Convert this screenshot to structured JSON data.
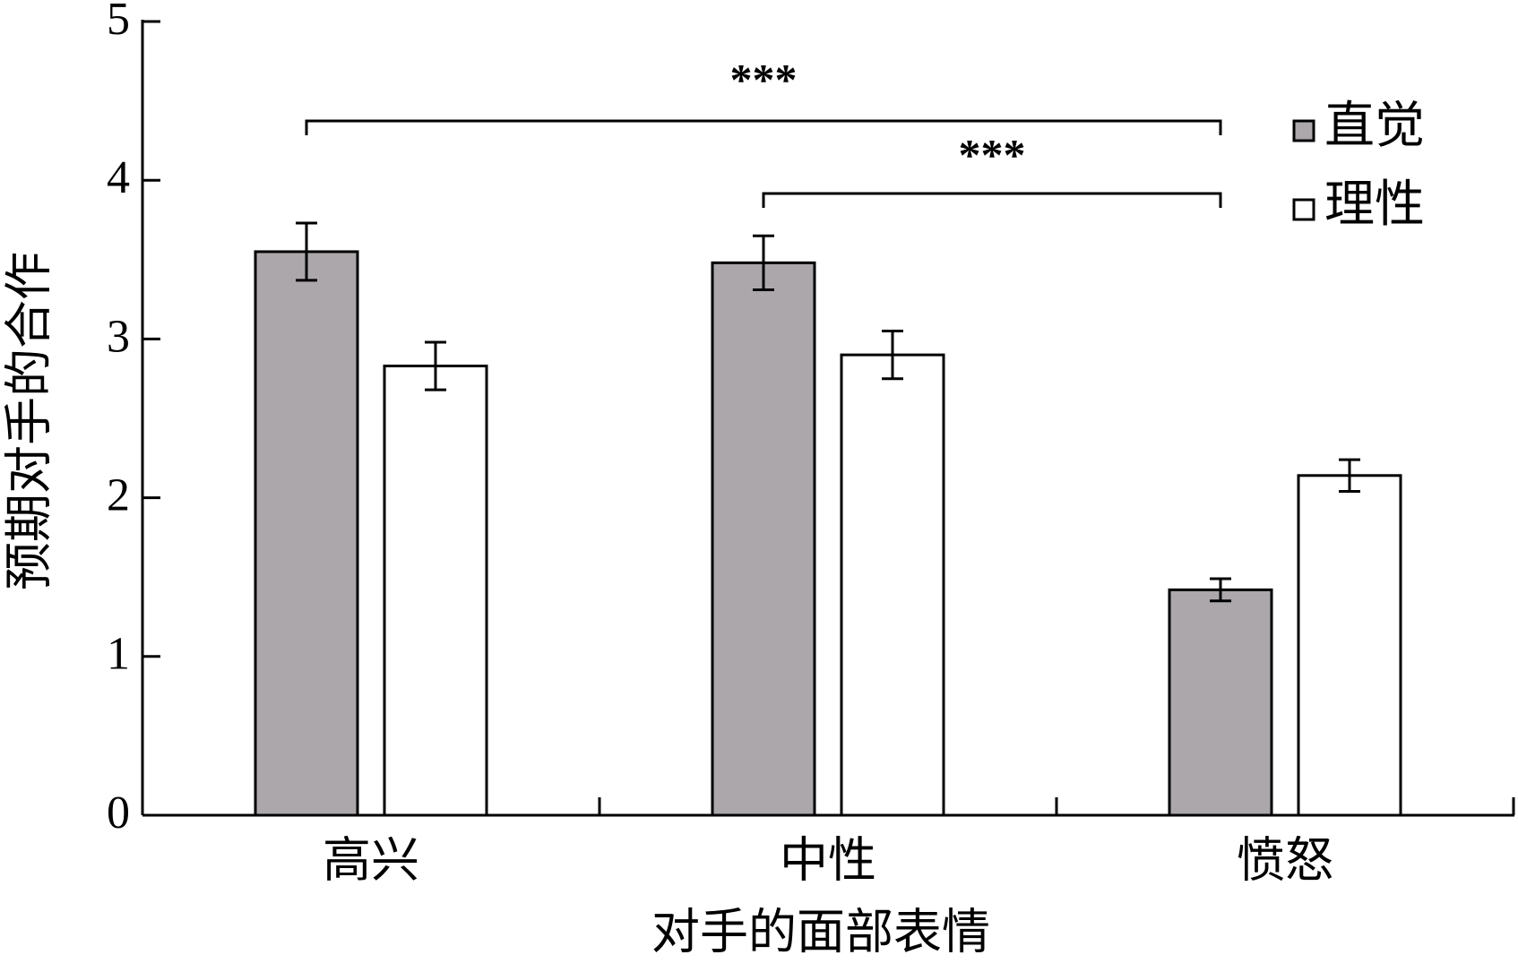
{
  "chart_data": {
    "type": "bar",
    "x_label": "对手的面部表情",
    "y_label": "预期对手的合作",
    "categories": [
      "高兴",
      "中性",
      "愤怒"
    ],
    "series": [
      {
        "name": "直觉",
        "color": "#aba7ab",
        "values": [
          3.55,
          3.48,
          1.42
        ],
        "errors": [
          0.18,
          0.17,
          0.07
        ]
      },
      {
        "name": "理性",
        "color": "#ffffff",
        "values": [
          2.83,
          2.9,
          2.14
        ],
        "errors": [
          0.15,
          0.15,
          0.1
        ]
      }
    ],
    "ylim": [
      0,
      5
    ],
    "yticks": [
      0,
      1,
      2,
      3,
      4,
      5
    ],
    "annotations": [
      {
        "text": "***",
        "between": [
          0,
          2
        ]
      },
      {
        "text": "***",
        "between": [
          1,
          2
        ]
      }
    ],
    "legend": "top-right"
  }
}
